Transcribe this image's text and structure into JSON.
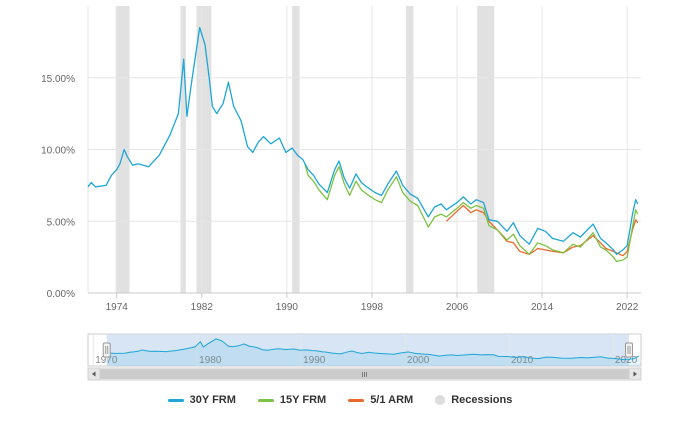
{
  "chart_data": {
    "type": "line",
    "y_ticks": [
      "15.00%",
      "10.00%",
      "5.00%",
      "0.00%"
    ],
    "y_tick_values": [
      15,
      10,
      5,
      0
    ],
    "ylim": [
      0,
      20
    ],
    "x_ticks": [
      "1974",
      "1982",
      "1990",
      "1998",
      "2006",
      "2014",
      "2022"
    ],
    "x_tick_values": [
      1974,
      1982,
      1990,
      1998,
      2006,
      2014,
      2022
    ],
    "xlim": [
      1971.3,
      2023.3
    ],
    "grid": "vertical and horizontal",
    "legend_position": "bottom",
    "colors": {
      "30y": "#1ea6d6",
      "15y": "#7cc242",
      "arm": "#e8692c",
      "recession": "#dcdcdc"
    },
    "recessions": [
      [
        1973.9,
        1975.2
      ],
      [
        1980.0,
        1980.5
      ],
      [
        1981.5,
        1982.9
      ],
      [
        1990.5,
        1991.2
      ],
      [
        2001.2,
        2001.9
      ],
      [
        2007.9,
        2009.5
      ]
    ],
    "series": [
      {
        "name": "30Y FRM",
        "color": "#1ea6d6",
        "points": [
          [
            1971.3,
            7.4
          ],
          [
            1971.6,
            7.7
          ],
          [
            1972.0,
            7.4
          ],
          [
            1973.0,
            7.5
          ],
          [
            1973.5,
            8.2
          ],
          [
            1974.0,
            8.6
          ],
          [
            1974.3,
            9.0
          ],
          [
            1974.7,
            10.0
          ],
          [
            1975.0,
            9.5
          ],
          [
            1975.5,
            8.9
          ],
          [
            1976.0,
            9.0
          ],
          [
            1977.0,
            8.8
          ],
          [
            1978.0,
            9.6
          ],
          [
            1979.0,
            11.0
          ],
          [
            1979.8,
            12.5
          ],
          [
            1980.3,
            16.3
          ],
          [
            1980.6,
            12.3
          ],
          [
            1981.0,
            14.5
          ],
          [
            1981.5,
            17.0
          ],
          [
            1981.8,
            18.5
          ],
          [
            1982.3,
            17.3
          ],
          [
            1982.7,
            15.0
          ],
          [
            1983.0,
            13.0
          ],
          [
            1983.4,
            12.5
          ],
          [
            1984.0,
            13.2
          ],
          [
            1984.5,
            14.7
          ],
          [
            1985.0,
            13.0
          ],
          [
            1985.7,
            12.0
          ],
          [
            1986.3,
            10.2
          ],
          [
            1986.8,
            9.8
          ],
          [
            1987.3,
            10.5
          ],
          [
            1987.8,
            10.9
          ],
          [
            1988.5,
            10.4
          ],
          [
            1989.3,
            10.8
          ],
          [
            1989.9,
            9.8
          ],
          [
            1990.5,
            10.1
          ],
          [
            1991.0,
            9.6
          ],
          [
            1991.5,
            9.3
          ],
          [
            1992.0,
            8.6
          ],
          [
            1992.5,
            8.2
          ],
          [
            1993.0,
            7.6
          ],
          [
            1993.8,
            7.0
          ],
          [
            1994.5,
            8.6
          ],
          [
            1994.9,
            9.2
          ],
          [
            1995.4,
            8.0
          ],
          [
            1995.9,
            7.3
          ],
          [
            1996.5,
            8.3
          ],
          [
            1997.0,
            7.7
          ],
          [
            1997.5,
            7.4
          ],
          [
            1998.3,
            7.0
          ],
          [
            1998.9,
            6.8
          ],
          [
            1999.5,
            7.6
          ],
          [
            2000.3,
            8.5
          ],
          [
            2000.9,
            7.5
          ],
          [
            2001.6,
            6.9
          ],
          [
            2002.3,
            6.6
          ],
          [
            2003.3,
            5.3
          ],
          [
            2003.9,
            6.0
          ],
          [
            2004.5,
            6.2
          ],
          [
            2005.0,
            5.8
          ],
          [
            2006.0,
            6.3
          ],
          [
            2006.6,
            6.7
          ],
          [
            2007.3,
            6.2
          ],
          [
            2007.8,
            6.5
          ],
          [
            2008.5,
            6.3
          ],
          [
            2009.0,
            5.1
          ],
          [
            2009.8,
            5.0
          ],
          [
            2010.7,
            4.3
          ],
          [
            2011.3,
            4.9
          ],
          [
            2011.9,
            4.0
          ],
          [
            2012.8,
            3.4
          ],
          [
            2013.6,
            4.5
          ],
          [
            2014.3,
            4.3
          ],
          [
            2015.0,
            3.8
          ],
          [
            2016.0,
            3.6
          ],
          [
            2016.9,
            4.2
          ],
          [
            2017.6,
            3.9
          ],
          [
            2018.8,
            4.8
          ],
          [
            2019.5,
            3.8
          ],
          [
            2020.0,
            3.5
          ],
          [
            2020.7,
            3.0
          ],
          [
            2021.0,
            2.7
          ],
          [
            2021.6,
            3.0
          ],
          [
            2022.0,
            3.3
          ],
          [
            2022.5,
            5.5
          ],
          [
            2022.8,
            6.5
          ],
          [
            2023.0,
            6.2
          ]
        ]
      },
      {
        "name": "15Y FRM",
        "color": "#7cc242",
        "points": [
          [
            1991.7,
            9.0
          ],
          [
            1992.0,
            8.2
          ],
          [
            1992.5,
            7.8
          ],
          [
            1993.0,
            7.2
          ],
          [
            1993.8,
            6.5
          ],
          [
            1994.5,
            8.2
          ],
          [
            1994.9,
            8.8
          ],
          [
            1995.4,
            7.6
          ],
          [
            1995.9,
            6.8
          ],
          [
            1996.5,
            7.8
          ],
          [
            1997.0,
            7.2
          ],
          [
            1997.5,
            6.9
          ],
          [
            1998.3,
            6.5
          ],
          [
            1998.9,
            6.3
          ],
          [
            1999.5,
            7.2
          ],
          [
            2000.3,
            8.1
          ],
          [
            2000.9,
            7.0
          ],
          [
            2001.6,
            6.4
          ],
          [
            2002.3,
            6.1
          ],
          [
            2003.3,
            4.6
          ],
          [
            2003.9,
            5.3
          ],
          [
            2004.5,
            5.5
          ],
          [
            2005.0,
            5.3
          ],
          [
            2006.0,
            5.9
          ],
          [
            2006.6,
            6.3
          ],
          [
            2007.3,
            5.9
          ],
          [
            2007.8,
            6.1
          ],
          [
            2008.5,
            5.9
          ],
          [
            2009.0,
            4.7
          ],
          [
            2009.8,
            4.4
          ],
          [
            2010.7,
            3.7
          ],
          [
            2011.3,
            4.1
          ],
          [
            2011.9,
            3.3
          ],
          [
            2012.8,
            2.7
          ],
          [
            2013.6,
            3.5
          ],
          [
            2014.3,
            3.3
          ],
          [
            2015.0,
            3.0
          ],
          [
            2016.0,
            2.8
          ],
          [
            2016.9,
            3.4
          ],
          [
            2017.6,
            3.2
          ],
          [
            2018.8,
            4.2
          ],
          [
            2019.5,
            3.2
          ],
          [
            2020.0,
            3.0
          ],
          [
            2020.7,
            2.5
          ],
          [
            2021.0,
            2.2
          ],
          [
            2021.6,
            2.3
          ],
          [
            2022.0,
            2.5
          ],
          [
            2022.5,
            4.6
          ],
          [
            2022.8,
            5.8
          ],
          [
            2023.0,
            5.5
          ]
        ]
      },
      {
        "name": "5/1 ARM",
        "color": "#e8692c",
        "points": [
          [
            2005.0,
            5.0
          ],
          [
            2006.0,
            5.7
          ],
          [
            2006.6,
            6.1
          ],
          [
            2007.3,
            5.6
          ],
          [
            2007.8,
            5.8
          ],
          [
            2008.5,
            5.6
          ],
          [
            2009.0,
            5.0
          ],
          [
            2009.8,
            4.4
          ],
          [
            2010.7,
            3.6
          ],
          [
            2011.3,
            3.5
          ],
          [
            2011.9,
            2.9
          ],
          [
            2012.8,
            2.7
          ],
          [
            2013.6,
            3.1
          ],
          [
            2014.3,
            3.0
          ],
          [
            2015.0,
            2.9
          ],
          [
            2016.0,
            2.8
          ],
          [
            2016.9,
            3.2
          ],
          [
            2017.6,
            3.3
          ],
          [
            2018.8,
            4.0
          ],
          [
            2019.5,
            3.5
          ],
          [
            2020.0,
            3.1
          ],
          [
            2020.7,
            2.9
          ],
          [
            2021.0,
            2.8
          ],
          [
            2021.6,
            2.6
          ],
          [
            2022.0,
            2.9
          ],
          [
            2022.5,
            4.4
          ],
          [
            2022.8,
            5.1
          ],
          [
            2023.0,
            4.9
          ]
        ]
      }
    ]
  },
  "navigator": {
    "labels": [
      "1970",
      "1980",
      "1990",
      "2000",
      "2010",
      "2020"
    ],
    "label_values": [
      1970,
      1980,
      1990,
      2000,
      2010,
      2020
    ],
    "xlim": [
      1969.5,
      2022.7
    ],
    "selected_range": [
      1971.3,
      2023.3
    ],
    "scrollbar_grip": "III"
  },
  "legend": {
    "items": [
      {
        "label": "30Y FRM",
        "color": "#1ea6d6",
        "kind": "line"
      },
      {
        "label": "15Y FRM",
        "color": "#7cc242",
        "kind": "line"
      },
      {
        "label": "5/1 ARM",
        "color": "#e8692c",
        "kind": "line"
      },
      {
        "label": "Recessions",
        "color": "#dcdcdc",
        "kind": "dot"
      }
    ]
  }
}
